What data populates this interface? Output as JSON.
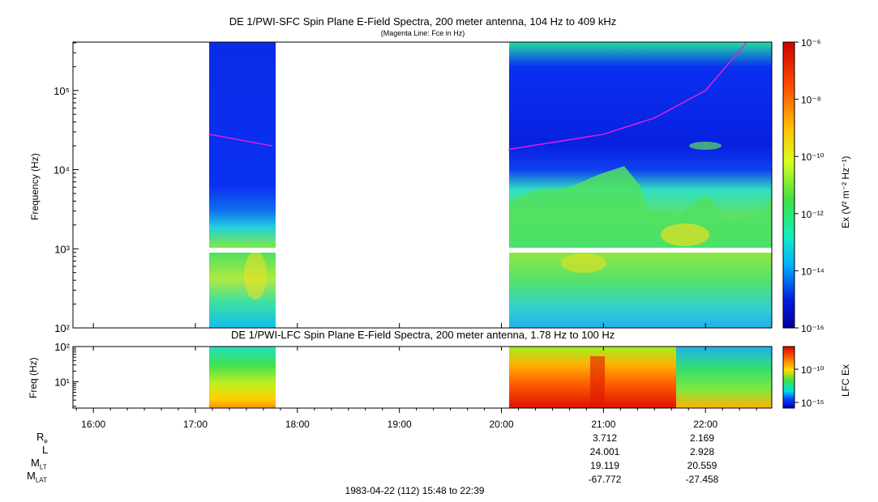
{
  "top_panel": {
    "title": "DE 1/PWI-SFC  Spin Plane E-Field Spectra, 200 meter antenna, 104 Hz to 409 kHz",
    "subtitle": "(Magenta Line: Fce in Hz)",
    "ylabel": "Frequency (Hz)",
    "yticks": [
      "10²",
      "10³",
      "10⁴",
      "10⁵"
    ],
    "colorbar_label": "Ex (V² m⁻² Hz⁻¹)",
    "colorbar_ticks": [
      "10⁻⁶",
      "10⁻⁸",
      "10⁻¹⁰",
      "10⁻¹²",
      "10⁻¹⁴",
      "10⁻¹⁶"
    ]
  },
  "bottom_panel": {
    "title": "DE 1/PWI-LFC  Spin Plane E-Field Spectra, 200 meter antenna, 1.78 Hz to 100 Hz",
    "ylabel": "Freq (Hz)",
    "yticks": [
      "10¹",
      "10²"
    ],
    "colorbar_label": "LFC Ex",
    "colorbar_ticks": [
      "10⁻¹⁰",
      "10⁻¹⁵"
    ]
  },
  "x_axis": {
    "ticks": [
      "16:00",
      "17:00",
      "18:00",
      "19:00",
      "20:00",
      "21:00",
      "22:00"
    ]
  },
  "ephemeris": {
    "labels": [
      "Re",
      "L",
      "MLT",
      "MLAT"
    ],
    "columns": [
      {
        "time": "21:00",
        "values": [
          "3.712",
          "24.001",
          "19.119",
          "-67.772"
        ]
      },
      {
        "time": "22:00",
        "values": [
          "2.169",
          "2.928",
          "20.559",
          "-27.458"
        ]
      }
    ]
  },
  "footer": "1983-04-22 (112) 15:48 to 22:39",
  "chart_data": [
    {
      "type": "heatmap",
      "title": "DE 1/PWI-SFC  Spin Plane E-Field Spectra, 200 meter antenna, 104 Hz to 409 kHz",
      "xlabel": "",
      "ylabel": "Frequency (Hz)",
      "x_range": [
        "15:48",
        "22:39"
      ],
      "ylim": [
        100,
        409000
      ],
      "y_scale": "log",
      "data_intervals": [
        [
          "17:08",
          "17:47"
        ],
        [
          "20:04",
          "22:39"
        ]
      ],
      "colorbar_range": [
        "1e-16",
        "1e-6"
      ],
      "fce_line": [
        {
          "time": "17:08",
          "freq_hz": 28000
        },
        {
          "time": "17:45",
          "freq_hz": 20000
        },
        {
          "time": "20:04",
          "freq_hz": 18000
        },
        {
          "time": "21:00",
          "freq_hz": 28000
        },
        {
          "time": "21:30",
          "freq_hz": 45000
        },
        {
          "time": "22:00",
          "freq_hz": 100000
        },
        {
          "time": "22:24",
          "freq_hz": 400000
        }
      ]
    },
    {
      "type": "heatmap",
      "title": "DE 1/PWI-LFC  Spin Plane E-Field Spectra, 200 meter antenna, 1.78 Hz to 100 Hz",
      "ylabel": "Freq (Hz)",
      "ylim": [
        1.78,
        100
      ],
      "y_scale": "log",
      "data_intervals": [
        [
          "17:08",
          "17:47"
        ],
        [
          "20:04",
          "22:39"
        ]
      ],
      "colorbar_label": "LFC Ex"
    }
  ],
  "colors": {
    "fce_line": "#e020e0",
    "background": "#ffffff"
  }
}
